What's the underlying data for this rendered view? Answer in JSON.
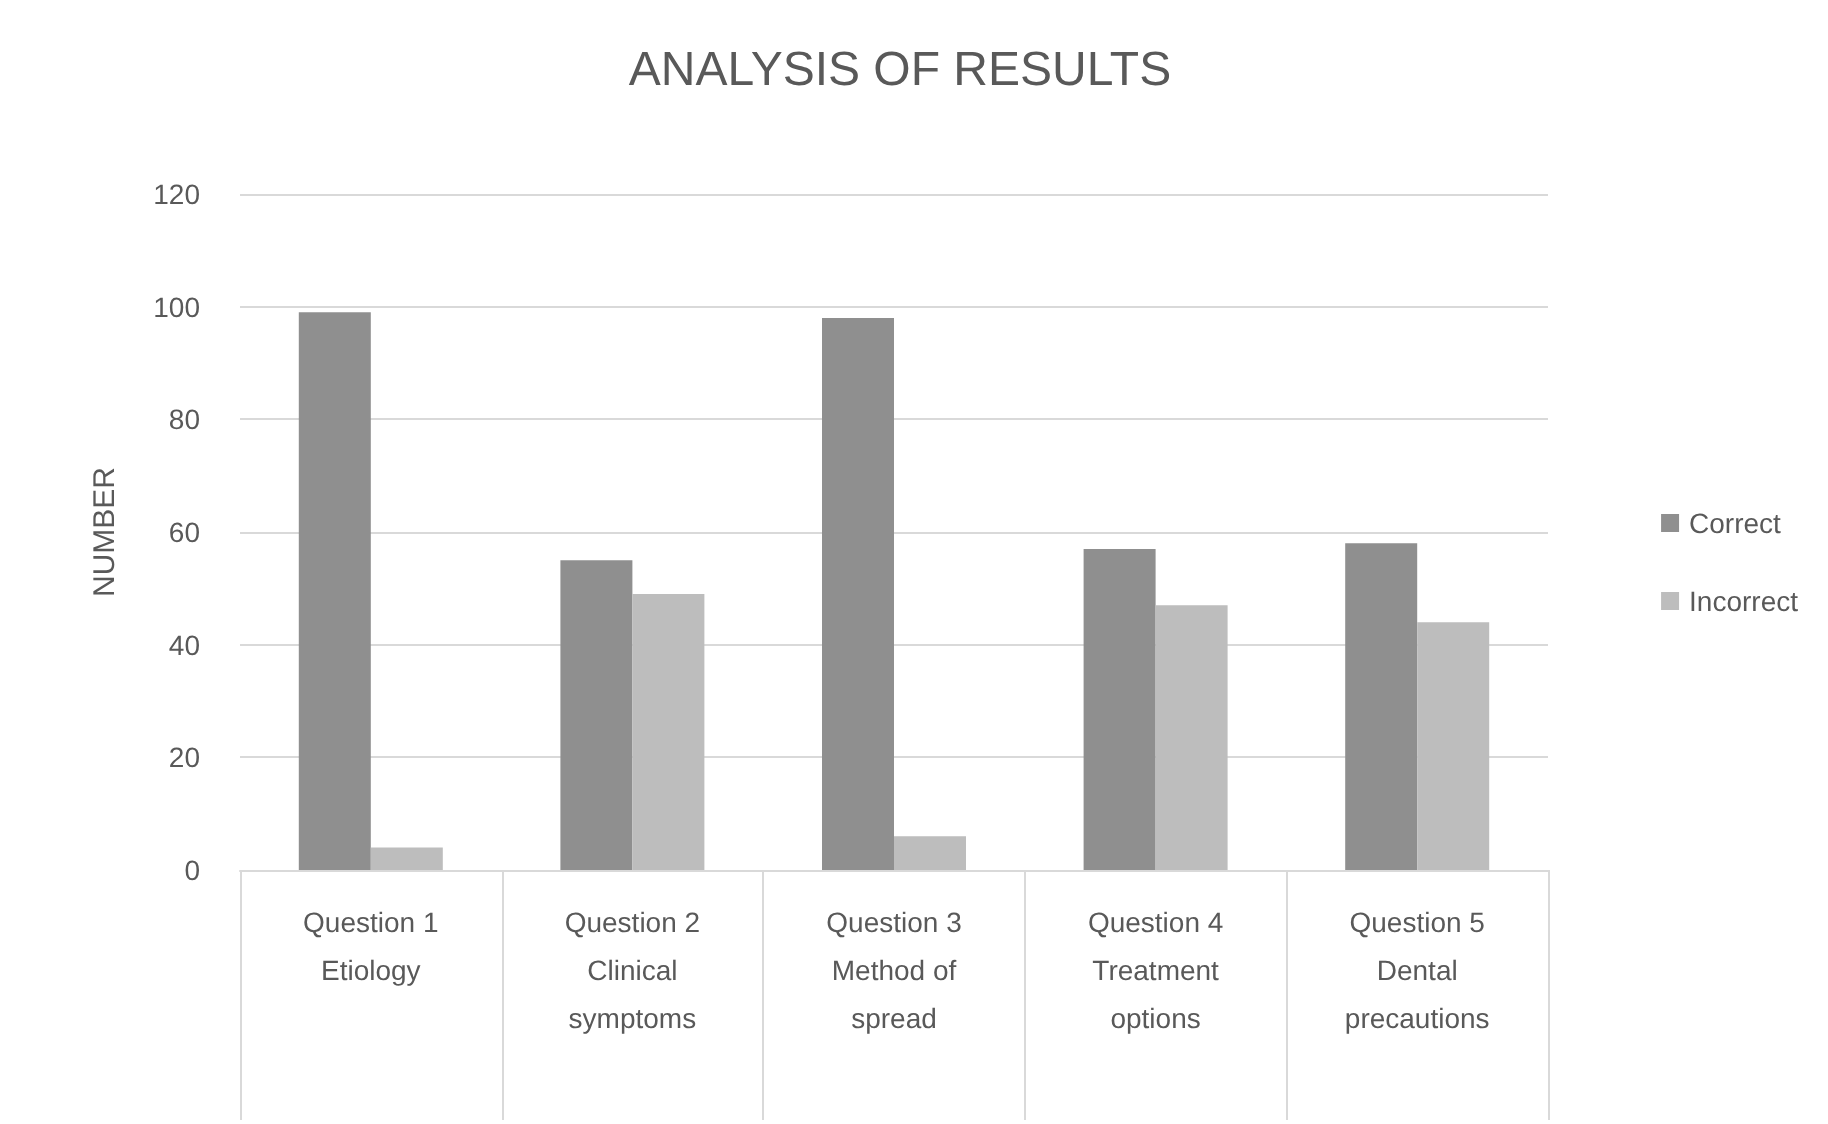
{
  "chart_data": {
    "type": "bar",
    "title": "ANALYSIS OF RESULTS",
    "ylabel": "NUMBER",
    "categories": [
      "Question 1\nEtiology",
      "Question 2\nClinical\nsymptoms",
      "Question 3\nMethod of\nspread",
      "Question 4\nTreatment\noptions",
      "Question 5\nDental\nprecautions"
    ],
    "series": [
      {
        "name": "Correct",
        "color": "#8f8f8f",
        "values": [
          99,
          55,
          98,
          57,
          58
        ]
      },
      {
        "name": "Incorrect",
        "color": "#bdbdbd",
        "values": [
          4,
          49,
          6,
          47,
          44
        ]
      }
    ],
    "ylim": [
      0,
      120
    ],
    "yticks": [
      0,
      20,
      40,
      60,
      80,
      100,
      120
    ],
    "grid": "y",
    "legend": "right"
  }
}
